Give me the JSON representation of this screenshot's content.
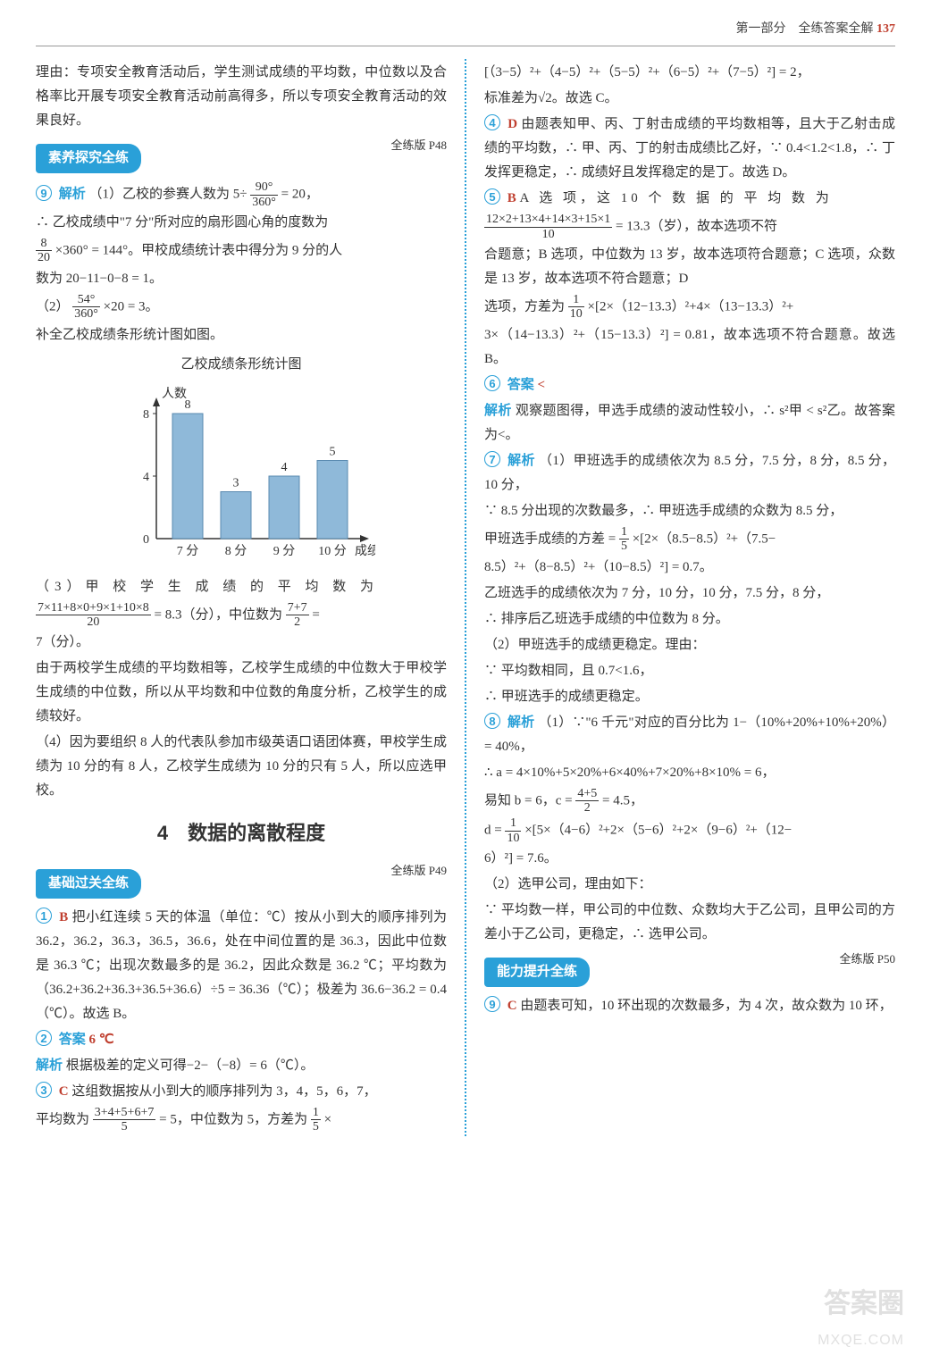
{
  "header": {
    "section": "第一部分　全练答案全解",
    "page": "137"
  },
  "left": {
    "intro1": "理由：专项安全教育活动后，学生测试成绩的平均数，中位数以及合格率比开展专项安全教育活动前高得多，所以专项安全教育活动的效果良好。",
    "tab1": "素养探究全练",
    "ref1": "全练版 P48",
    "q9_label": "9",
    "q9_head": "解析",
    "q9_1a": "（1）乙校的参赛人数为 5÷",
    "q9_1_frac_n": "90°",
    "q9_1_frac_d": "360°",
    "q9_1b": "= 20，",
    "q9_2a": "∴ 乙校成绩中\"7 分\"所对应的扇形圆心角的度数为",
    "q9_2_frac_n": "8",
    "q9_2_frac_d": "20",
    "q9_2b": "×360° = 144°。甲校成绩统计表中得分为 9 分的人",
    "q9_2c": "数为 20−11−0−8 = 1。",
    "q9_3a": "（2）",
    "q9_3_frac_n": "54°",
    "q9_3_frac_d": "360°",
    "q9_3b": "×20 = 3。",
    "q9_4": "补全乙校成绩条形统计图如图。",
    "chart_title": "乙校成绩条形统计图",
    "chart": {
      "ylabel": "人数",
      "xlabel": "成绩",
      "categories": [
        "7 分",
        "8 分",
        "9 分",
        "10 分"
      ],
      "values": [
        8,
        3,
        4,
        5
      ],
      "bar_color": "#8fb9d9",
      "bar_border": "#5a8ab0",
      "axis_color": "#333333",
      "text_color": "#333333",
      "ymax": 8,
      "ytick": 4
    },
    "q9_5a": "（3）甲 校 学 生 成 绩 的 平 均 数 为",
    "q9_5_frac_n": "7×11+8×0+9×1+10×8",
    "q9_5_frac_d": "20",
    "q9_5b": " = 8.3（分），中位数为",
    "q9_5_frac2_n": "7+7",
    "q9_5_frac2_d": "2",
    "q9_5c": " =",
    "q9_5d": "7（分）。",
    "q9_6": "由于两校学生成绩的平均数相等，乙校学生成绩的中位数大于甲校学生成绩的中位数，所以从平均数和中位数的角度分析，乙校学生的成绩较好。",
    "q9_7": "（4）因为要组织 8 人的代表队参加市级英语口语团体赛，甲校学生成绩为 10 分的有 8 人，乙校学生成绩为 10 分的只有 5 人，所以应选甲校。",
    "big_title": "4　数据的离散程度",
    "tab2": "基础过关全练",
    "ref2": "全练版 P49",
    "q1_label": "1",
    "q1_ans": "B",
    "q1": "把小红连续 5 天的体温（单位：℃）按从小到大的顺序排列为 36.2，36.2，36.3，36.5，36.6，处在中间位置的是 36.3，因此中位数是 36.3 ℃；出现次数最多的是 36.2，因此众数是 36.2 ℃；平均数为（36.2+36.2+36.3+36.5+36.6）÷5 = 36.36（℃）；极差为 36.6−36.2 = 0.4（℃）。故选 B。",
    "q2_label": "2",
    "q2_head": "答案",
    "q2_ans": "6 ℃",
    "q2_jx": "解析",
    "q2": "根据极差的定义可得−2−（−8）= 6（℃）。",
    "q3_label": "3",
    "q3_ans": "C",
    "q3a": "这组数据按从小到大的顺序排列为 3，4，5，6，7，",
    "q3b": "平均数为",
    "q3_frac_n": "3+4+5+6+7",
    "q3_frac_d": "5",
    "q3c": " = 5，中位数为 5，方差为",
    "q3_frac2_n": "1",
    "q3_frac2_d": "5",
    "q3d": " ×"
  },
  "right": {
    "r0a": "[（3−5）²+（4−5）²+（5−5）²+（6−5）²+（7−5）²] = 2，",
    "r0b": "标准差为√2。故选 C。",
    "q4_label": "4",
    "q4_ans": "D",
    "q4": "由题表知甲、丙、丁射击成绩的平均数相等，且大于乙射击成绩的平均数，∴ 甲、丙、丁的射击成绩比乙好，∵ 0.4<1.2<1.8，∴ 丁发挥更稳定，∴ 成绩好且发挥稳定的是丁。故选 D。",
    "q5_label": "5",
    "q5_ans": "B",
    "q5a": "A 选 项，这 10 个 数 据 的 平 均 数 为",
    "q5_frac_n": "12×2+13×4+14×3+15×1",
    "q5_frac_d": "10",
    "q5b": " = 13.3（岁），故本选项不符",
    "q5c": "合题意；B 选项，中位数为 13 岁，故本选项符合题意；C 选项，众数是 13 岁，故本选项不符合题意；D",
    "q5d": "选项，方差为",
    "q5_frac2_n": "1",
    "q5_frac2_d": "10",
    "q5e": "×[2×（12−13.3）²+4×（13−13.3）²+",
    "q5f": "3×（14−13.3）²+（15−13.3）²] = 0.81，故本选项不符合题意。故选 B。",
    "q6_label": "6",
    "q6_head": "答案",
    "q6_ans": "<",
    "q6_jx": "解析",
    "q6": "观察题图得，甲选手成绩的波动性较小，∴ s²甲 < s²乙。故答案为<。",
    "q7_label": "7",
    "q7_head": "解析",
    "q7a": "（1）甲班选手的成绩依次为 8.5 分，7.5 分，8 分，8.5 分，10 分，",
    "q7b": "∵ 8.5 分出现的次数最多，∴ 甲班选手成绩的众数为 8.5 分，",
    "q7c": "甲班选手成绩的方差 =",
    "q7_frac_n": "1",
    "q7_frac_d": "5",
    "q7d": "×[2×（8.5−8.5）²+（7.5−",
    "q7e": "8.5）²+（8−8.5）²+（10−8.5）²] = 0.7。",
    "q7f": "乙班选手的成绩依次为 7 分，10 分，10 分，7.5 分，8 分，",
    "q7g": "∴ 排序后乙班选手成绩的中位数为 8 分。",
    "q7h": "（2）甲班选手的成绩更稳定。理由：",
    "q7i": "∵ 平均数相同，且 0.7<1.6，",
    "q7j": "∴ 甲班选手的成绩更稳定。",
    "q8_label": "8",
    "q8_head": "解析",
    "q8a": "（1）∵\"6 千元\"对应的百分比为 1−（10%+20%+10%+20%）= 40%，",
    "q8b": "∴ a = 4×10%+5×20%+6×40%+7×20%+8×10% = 6，",
    "q8c": "易知 b = 6，c =",
    "q8_frac_n": "4+5",
    "q8_frac_d": "2",
    "q8d": " = 4.5，",
    "q8e": "d =",
    "q8_frac2_n": "1",
    "q8_frac2_d": "10",
    "q8f": "×[5×（4−6）²+2×（5−6）²+2×（9−6）²+（12−",
    "q8g": "6）²] = 7.6。",
    "q8h": "（2）选甲公司，理由如下：",
    "q8i": "∵ 平均数一样，甲公司的中位数、众数均大于乙公司，且甲公司的方差小于乙公司，更稳定，∴ 选甲公司。",
    "tab3": "能力提升全练",
    "ref3": "全练版 P50",
    "q9r_label": "9",
    "q9r_ans": "C",
    "q9r": "由题表可知，10 环出现的次数最多，为 4 次，故众数为 10 环，"
  },
  "watermark": {
    "l1": "答案圈",
    "l2": "MXQE.COM"
  }
}
